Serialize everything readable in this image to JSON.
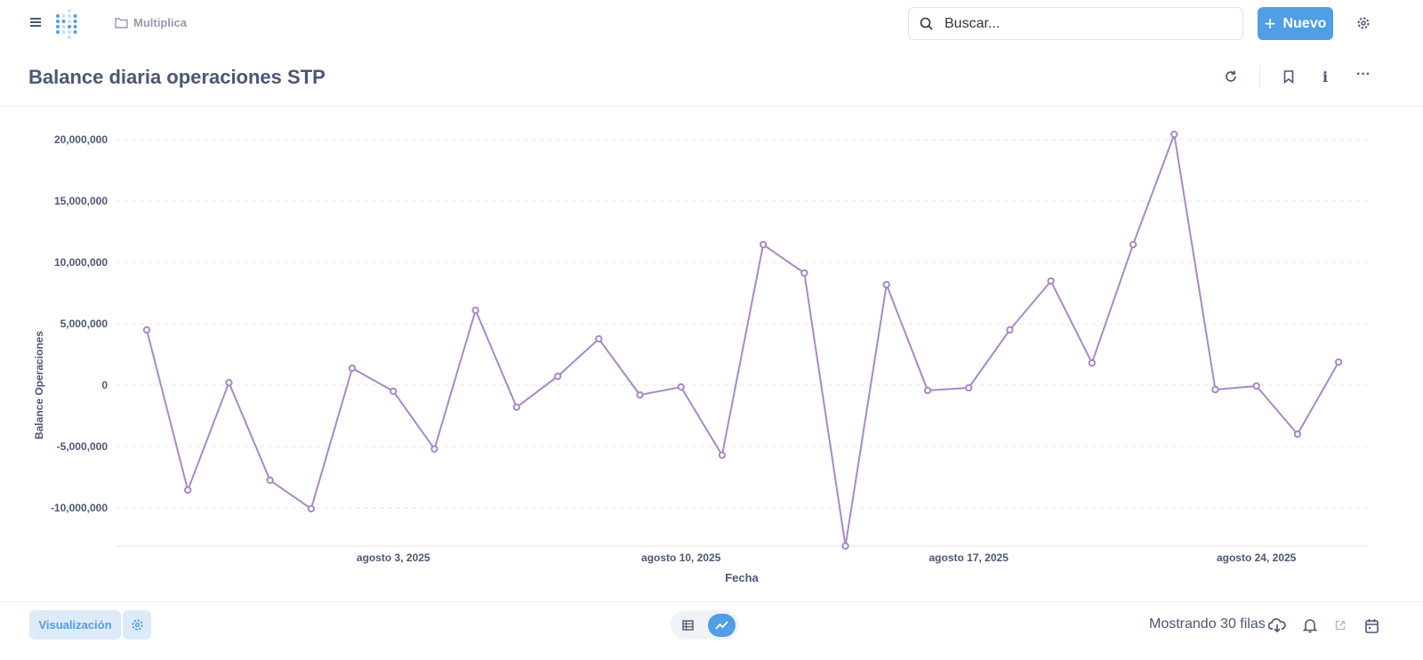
{
  "header": {
    "collection": "Multiplica",
    "search_placeholder": "Buscar...",
    "new_label": "Nuevo"
  },
  "page": {
    "title": "Balance diaria operaciones STP"
  },
  "footer": {
    "visualization_label": "Visualización",
    "rows_label": "Mostrando 30 filas"
  },
  "colors": {
    "accent": "#509ee3",
    "series": "#a989c5"
  },
  "chart_data": {
    "type": "line",
    "xlabel": "Fecha",
    "ylabel": "Balance Operaciones",
    "x_tick_labels": [
      {
        "date": "2025-08-03",
        "label": "agosto 3, 2025"
      },
      {
        "date": "2025-08-10",
        "label": "agosto 10, 2025"
      },
      {
        "date": "2025-08-17",
        "label": "agosto 17, 2025"
      },
      {
        "date": "2025-08-24",
        "label": "agosto 24, 2025"
      }
    ],
    "y_ticks": [
      -10000000,
      -5000000,
      0,
      5000000,
      10000000,
      15000000,
      20000000
    ],
    "y_tick_labels": [
      "-10,000,000",
      "-5,000,000",
      "0",
      "5,000,000",
      "10,000,000",
      "15,000,000",
      "20,000,000"
    ],
    "ylim": [
      -13100000,
      20600000
    ],
    "grid": true,
    "x": [
      "2025-07-28",
      "2025-07-29",
      "2025-07-30",
      "2025-07-31",
      "2025-08-01",
      "2025-08-02",
      "2025-08-03",
      "2025-08-04",
      "2025-08-05",
      "2025-08-06",
      "2025-08-07",
      "2025-08-08",
      "2025-08-09",
      "2025-08-10",
      "2025-08-11",
      "2025-08-12",
      "2025-08-13",
      "2025-08-14",
      "2025-08-15",
      "2025-08-16",
      "2025-08-17",
      "2025-08-18",
      "2025-08-19",
      "2025-08-20",
      "2025-08-21",
      "2025-08-22",
      "2025-08-23",
      "2025-08-24",
      "2025-08-25",
      "2025-08-26"
    ],
    "values": [
      4500000,
      -8550000,
      200000,
      -7750000,
      -10070000,
      1380000,
      -500000,
      -5200000,
      6100000,
      -1800000,
      720000,
      3770000,
      -800000,
      -150000,
      -5700000,
      11450000,
      9130000,
      -13100000,
      8190000,
      -430000,
      -220000,
      4500000,
      8480000,
      1810000,
      11450000,
      20430000,
      -360000,
      -70000,
      -3990000,
      1880000
    ]
  }
}
